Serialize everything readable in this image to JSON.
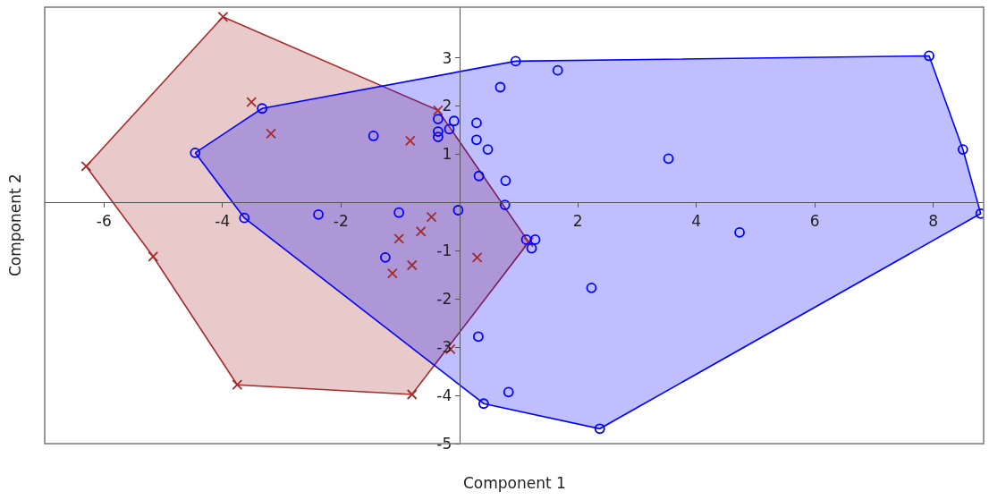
{
  "chart_data": {
    "type": "scatter",
    "xlabel": "Component 1",
    "ylabel": "Component 2",
    "xlim": [
      -7.0,
      8.85
    ],
    "ylim": [
      -5,
      4.05
    ],
    "xticks": [
      -6,
      -4,
      -2,
      2,
      4,
      6,
      8
    ],
    "yticks": [
      -5,
      -4,
      -3,
      -2,
      -1,
      1,
      2,
      3
    ],
    "series": [
      {
        "type": "area",
        "color": "#a52a2a",
        "x": [
          -3.99,
          -0.36,
          1.17,
          -0.8,
          -3.75,
          -5.17,
          -6.3,
          -3.99
        ],
        "values": [
          3.85,
          1.91,
          -0.82,
          -3.98,
          -3.78,
          -1.12,
          0.75,
          3.85
        ]
      },
      {
        "type": "area",
        "color": "#0000ff",
        "x": [
          -4.46,
          -3.33,
          0.95,
          7.93,
          8.5,
          8.8,
          2.37,
          0.41,
          -3.63,
          -4.46
        ],
        "values": [
          1.03,
          1.95,
          2.93,
          3.04,
          1.1,
          -0.23,
          -4.69,
          -4.17,
          -0.32,
          1.03
        ]
      },
      {
        "marker": "cross",
        "color": "#a52a2a",
        "x": [
          -3.99,
          -6.3,
          -3.51,
          -3.18,
          -0.36,
          -0.83,
          -5.17,
          -0.47,
          -0.65,
          -1.02,
          -0.8,
          -1.13,
          0.3,
          -3.75,
          -0.8,
          -0.15,
          1.17
        ],
        "values": [
          3.85,
          0.75,
          2.08,
          1.43,
          1.91,
          1.28,
          -1.12,
          -0.3,
          -0.6,
          -0.75,
          -1.3,
          -1.47,
          -1.14,
          -3.78,
          -3.98,
          -3.04,
          -0.82
        ]
      },
      {
        "marker": "circle",
        "color": "#0000ff",
        "x": [
          -4.46,
          -3.33,
          -3.63,
          -2.38,
          -1.45,
          -1.02,
          -1.25,
          -0.36,
          -0.36,
          -0.36,
          -0.17,
          -0.09,
          -0.02,
          0.29,
          0.29,
          0.48,
          0.33,
          0.78,
          0.77,
          0.69,
          0.95,
          1.66,
          1.13,
          1.28,
          1.22,
          2.23,
          0.32,
          0.83,
          0.41,
          2.37,
          3.53,
          4.73,
          7.93,
          8.5,
          8.8
        ],
        "values": [
          1.03,
          1.95,
          -0.32,
          -0.25,
          1.38,
          -0.21,
          -1.14,
          1.73,
          1.47,
          1.36,
          1.52,
          1.69,
          -0.16,
          1.65,
          1.3,
          1.1,
          0.55,
          0.45,
          -0.05,
          2.39,
          2.93,
          2.74,
          -0.77,
          -0.77,
          -0.95,
          -1.77,
          -2.78,
          -3.93,
          -4.17,
          -4.69,
          0.91,
          -0.62,
          3.04,
          1.1,
          -0.23
        ]
      }
    ]
  }
}
